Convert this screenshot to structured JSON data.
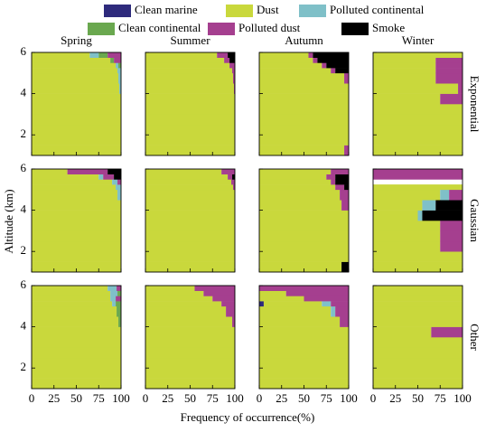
{
  "chart_data": {
    "type": "bar",
    "orientation": "horizontal",
    "stacked": true,
    "xlabel": "Frequency of occurrence(%)",
    "ylabel": "Altitude (km)",
    "xlim": [
      0,
      100
    ],
    "xticks": [
      0,
      25,
      50,
      75,
      100
    ],
    "ylim": [
      1,
      6
    ],
    "yticks": [
      2,
      4,
      6
    ],
    "bins": [
      1,
      1.5,
      2,
      2.5,
      3,
      3.5,
      4,
      4.5,
      5,
      5.25,
      5.5,
      5.75,
      6
    ],
    "legend": [
      {
        "name": "Clean marine",
        "color": "#2e2a7c"
      },
      {
        "name": "Dust",
        "color": "#c9d83c"
      },
      {
        "name": "Polluted continental",
        "color": "#7fc0c8"
      },
      {
        "name": "Clean continental",
        "color": "#6aa84f"
      },
      {
        "name": "Polluted dust",
        "color": "#a53f8f"
      },
      {
        "name": "Smoke",
        "color": "#000000"
      }
    ],
    "panels": [
      {
        "title": "Spring",
        "values": [
          [
            0,
            100,
            0,
            0,
            0,
            0
          ],
          [
            0,
            100,
            0,
            0,
            0,
            0
          ],
          [
            0,
            100,
            0,
            0,
            0,
            0
          ],
          [
            0,
            100,
            0,
            0,
            0,
            0
          ],
          [
            0,
            100,
            0,
            0,
            0,
            0
          ],
          [
            0,
            100,
            0,
            0,
            0,
            0
          ],
          [
            0,
            98,
            2,
            0,
            0,
            0
          ],
          [
            0,
            97,
            3,
            0,
            0,
            0
          ],
          [
            0,
            96,
            4,
            0,
            0,
            0
          ],
          [
            0,
            94,
            3,
            3,
            0,
            0
          ],
          [
            0,
            88,
            0,
            4,
            8,
            0
          ],
          [
            0,
            65,
            10,
            10,
            15,
            0
          ]
        ]
      },
      {
        "title": "Summer",
        "values": [
          [
            0,
            100,
            0,
            0,
            0,
            0
          ],
          [
            0,
            100,
            0,
            0,
            0,
            0
          ],
          [
            0,
            100,
            0,
            0,
            0,
            0
          ],
          [
            0,
            100,
            0,
            0,
            0,
            0
          ],
          [
            0,
            100,
            0,
            0,
            0,
            0
          ],
          [
            0,
            100,
            0,
            0,
            0,
            0
          ],
          [
            0,
            99,
            0,
            0,
            1,
            0
          ],
          [
            0,
            98,
            0,
            0,
            2,
            0
          ],
          [
            0,
            97,
            0,
            0,
            3,
            0
          ],
          [
            0,
            94,
            0,
            0,
            6,
            0
          ],
          [
            0,
            88,
            0,
            0,
            6,
            6
          ],
          [
            0,
            80,
            0,
            0,
            12,
            8
          ]
        ]
      },
      {
        "title": "Autumn",
        "values": [
          [
            0,
            95,
            0,
            0,
            5,
            0
          ],
          [
            0,
            100,
            0,
            0,
            0,
            0
          ],
          [
            0,
            100,
            0,
            0,
            0,
            0
          ],
          [
            0,
            100,
            0,
            0,
            0,
            0
          ],
          [
            0,
            100,
            0,
            0,
            0,
            0
          ],
          [
            0,
            100,
            0,
            0,
            0,
            0
          ],
          [
            0,
            100,
            0,
            0,
            0,
            0
          ],
          [
            0,
            95,
            0,
            0,
            5,
            0
          ],
          [
            0,
            80,
            0,
            0,
            5,
            15
          ],
          [
            0,
            70,
            0,
            0,
            5,
            25
          ],
          [
            0,
            60,
            0,
            0,
            5,
            35
          ],
          [
            0,
            55,
            0,
            0,
            5,
            40
          ]
        ]
      },
      {
        "title": "Winter",
        "row_label": "Exponential",
        "values": [
          [
            0,
            100,
            0,
            0,
            0,
            0
          ],
          [
            0,
            100,
            0,
            0,
            0,
            0
          ],
          [
            0,
            100,
            0,
            0,
            0,
            0
          ],
          [
            0,
            100,
            0,
            0,
            0,
            0
          ],
          [
            0,
            100,
            0,
            0,
            0,
            0
          ],
          [
            0,
            75,
            0,
            0,
            25,
            0
          ],
          [
            0,
            95,
            0,
            0,
            5,
            0
          ],
          [
            0,
            70,
            0,
            0,
            30,
            0
          ],
          [
            0,
            70,
            0,
            0,
            30,
            0
          ],
          [
            0,
            70,
            0,
            0,
            30,
            0
          ],
          [
            0,
            70,
            0,
            0,
            30,
            0
          ],
          [
            0,
            100,
            0,
            0,
            0,
            0
          ]
        ]
      },
      {
        "values": [
          [
            0,
            100,
            0,
            0,
            0,
            0
          ],
          [
            0,
            100,
            0,
            0,
            0,
            0
          ],
          [
            0,
            100,
            0,
            0,
            0,
            0
          ],
          [
            0,
            100,
            0,
            0,
            0,
            0
          ],
          [
            0,
            100,
            0,
            0,
            0,
            0
          ],
          [
            0,
            100,
            0,
            0,
            0,
            0
          ],
          [
            0,
            100,
            0,
            0,
            0,
            0
          ],
          [
            0,
            96,
            4,
            0,
            0,
            0
          ],
          [
            0,
            94,
            6,
            0,
            0,
            0
          ],
          [
            0,
            90,
            6,
            0,
            4,
            0
          ],
          [
            0,
            75,
            5,
            0,
            12,
            8
          ],
          [
            0,
            40,
            0,
            0,
            45,
            15
          ]
        ]
      },
      {
        "values": [
          [
            0,
            100,
            0,
            0,
            0,
            0
          ],
          [
            0,
            100,
            0,
            0,
            0,
            0
          ],
          [
            0,
            100,
            0,
            0,
            0,
            0
          ],
          [
            0,
            100,
            0,
            0,
            0,
            0
          ],
          [
            0,
            100,
            0,
            0,
            0,
            0
          ],
          [
            0,
            100,
            0,
            0,
            0,
            0
          ],
          [
            0,
            100,
            0,
            0,
            0,
            0
          ],
          [
            0,
            100,
            0,
            0,
            0,
            0
          ],
          [
            0,
            98,
            0,
            0,
            2,
            0
          ],
          [
            0,
            96,
            0,
            0,
            4,
            0
          ],
          [
            0,
            92,
            0,
            0,
            5,
            3
          ],
          [
            0,
            85,
            0,
            0,
            15,
            0
          ]
        ]
      },
      {
        "values": [
          [
            0,
            92,
            0,
            0,
            0,
            8
          ],
          [
            0,
            100,
            0,
            0,
            0,
            0
          ],
          [
            0,
            100,
            0,
            0,
            0,
            0
          ],
          [
            0,
            100,
            0,
            0,
            0,
            0
          ],
          [
            0,
            100,
            0,
            0,
            0,
            0
          ],
          [
            0,
            100,
            0,
            0,
            0,
            0
          ],
          [
            0,
            92,
            0,
            0,
            8,
            0
          ],
          [
            0,
            90,
            0,
            0,
            10,
            0
          ],
          [
            0,
            85,
            0,
            0,
            10,
            5
          ],
          [
            0,
            80,
            0,
            0,
            5,
            15
          ],
          [
            0,
            75,
            0,
            0,
            10,
            15
          ],
          [
            0,
            80,
            0,
            0,
            20,
            0
          ]
        ]
      },
      {
        "row_label": "Gaussian",
        "values": [
          [
            0,
            100,
            0,
            0,
            0,
            0
          ],
          [
            0,
            100,
            0,
            0,
            0,
            0
          ],
          [
            0,
            75,
            0,
            0,
            25,
            0
          ],
          [
            0,
            75,
            0,
            0,
            25,
            0
          ],
          [
            0,
            75,
            0,
            0,
            25,
            0
          ],
          [
            0,
            50,
            5,
            0,
            0,
            45
          ],
          [
            0,
            55,
            15,
            0,
            0,
            30
          ],
          [
            0,
            75,
            10,
            0,
            15,
            0
          ],
          [
            0,
            100,
            0,
            0,
            0,
            0
          ],
          [
            0,
            0,
            0,
            0,
            0,
            0
          ],
          [
            0,
            0,
            0,
            0,
            100,
            0
          ],
          [
            0,
            0,
            0,
            0,
            100,
            0
          ]
        ]
      },
      {
        "values": [
          [
            0,
            100,
            0,
            0,
            0,
            0
          ],
          [
            0,
            100,
            0,
            0,
            0,
            0
          ],
          [
            0,
            100,
            0,
            0,
            0,
            0
          ],
          [
            0,
            100,
            0,
            0,
            0,
            0
          ],
          [
            0,
            100,
            0,
            0,
            0,
            0
          ],
          [
            0,
            100,
            0,
            0,
            0,
            0
          ],
          [
            0,
            97,
            0,
            3,
            0,
            0
          ],
          [
            0,
            95,
            0,
            5,
            0,
            0
          ],
          [
            0,
            90,
            4,
            6,
            0,
            0
          ],
          [
            0,
            88,
            6,
            0,
            6,
            0
          ],
          [
            0,
            88,
            8,
            4,
            0,
            0
          ],
          [
            0,
            85,
            10,
            0,
            5,
            0
          ]
        ]
      },
      {
        "values": [
          [
            0,
            100,
            0,
            0,
            0,
            0
          ],
          [
            0,
            100,
            0,
            0,
            0,
            0
          ],
          [
            0,
            100,
            0,
            0,
            0,
            0
          ],
          [
            0,
            100,
            0,
            0,
            0,
            0
          ],
          [
            0,
            100,
            0,
            0,
            0,
            0
          ],
          [
            0,
            100,
            0,
            0,
            0,
            0
          ],
          [
            0,
            97,
            0,
            0,
            3,
            0
          ],
          [
            0,
            90,
            0,
            0,
            10,
            0
          ],
          [
            0,
            85,
            0,
            0,
            15,
            0
          ],
          [
            0,
            75,
            0,
            0,
            25,
            0
          ],
          [
            0,
            65,
            0,
            0,
            35,
            0
          ],
          [
            0,
            55,
            0,
            0,
            45,
            0
          ]
        ]
      },
      {
        "values": [
          [
            0,
            100,
            0,
            0,
            0,
            0
          ],
          [
            0,
            100,
            0,
            0,
            0,
            0
          ],
          [
            0,
            100,
            0,
            0,
            0,
            0
          ],
          [
            0,
            100,
            0,
            0,
            0,
            0
          ],
          [
            0,
            100,
            0,
            0,
            0,
            0
          ],
          [
            0,
            100,
            0,
            0,
            0,
            0
          ],
          [
            0,
            90,
            0,
            0,
            10,
            0
          ],
          [
            0,
            80,
            5,
            0,
            15,
            0
          ],
          [
            5,
            65,
            10,
            0,
            20,
            0
          ],
          [
            0,
            50,
            0,
            0,
            50,
            0
          ],
          [
            0,
            30,
            0,
            0,
            70,
            0
          ],
          [
            0,
            0,
            0,
            0,
            100,
            0
          ]
        ]
      },
      {
        "row_label": "Other",
        "values": [
          [
            0,
            100,
            0,
            0,
            0,
            0
          ],
          [
            0,
            100,
            0,
            0,
            0,
            0
          ],
          [
            0,
            100,
            0,
            0,
            0,
            0
          ],
          [
            0,
            100,
            0,
            0,
            0,
            0
          ],
          [
            0,
            100,
            0,
            0,
            0,
            0
          ],
          [
            0,
            65,
            0,
            0,
            35,
            0
          ],
          [
            0,
            100,
            0,
            0,
            0,
            0
          ],
          [
            0,
            100,
            0,
            0,
            0,
            0
          ],
          [
            0,
            100,
            0,
            0,
            0,
            0
          ],
          [
            0,
            100,
            0,
            0,
            0,
            0
          ],
          [
            0,
            100,
            0,
            0,
            0,
            0
          ],
          [
            0,
            100,
            0,
            0,
            0,
            0
          ]
        ]
      }
    ]
  }
}
